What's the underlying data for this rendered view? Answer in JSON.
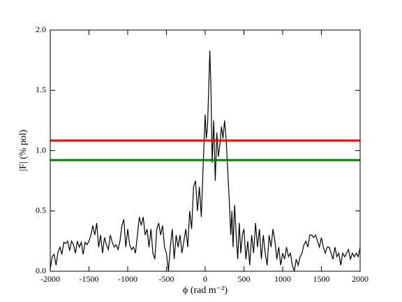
{
  "chart_data": {
    "type": "line",
    "xlabel": "ϕ (rad m⁻²)",
    "ylabel": "|F| (% pol)",
    "xlim": [
      -2000,
      2000
    ],
    "ylim": [
      0,
      2
    ],
    "xticks": [
      -2000,
      -1500,
      -1000,
      -500,
      0,
      500,
      1000,
      1500,
      2000
    ],
    "yticks": [
      {
        "value": 0,
        "label": "0.0"
      },
      0.5,
      {
        "value": 1,
        "label": "1.0"
      },
      1.5,
      {
        "value": 2,
        "label": "2.0"
      }
    ],
    "grid": false,
    "hlines": [
      {
        "value": 1.084,
        "color": "#ff0000"
      },
      {
        "value": 0.922,
        "color": "#008000"
      }
    ],
    "x": [
      -2000,
      -1975,
      -1950,
      -1925,
      -1900,
      -1875,
      -1850,
      -1825,
      -1800,
      -1775,
      -1750,
      -1725,
      -1700,
      -1675,
      -1650,
      -1625,
      -1600,
      -1575,
      -1550,
      -1525,
      -1500,
      -1475,
      -1450,
      -1425,
      -1400,
      -1375,
      -1350,
      -1325,
      -1300,
      -1275,
      -1250,
      -1225,
      -1200,
      -1175,
      -1150,
      -1125,
      -1100,
      -1075,
      -1050,
      -1025,
      -1000,
      -975,
      -950,
      -925,
      -900,
      -875,
      -850,
      -825,
      -800,
      -775,
      -750,
      -725,
      -700,
      -675,
      -650,
      -625,
      -600,
      -575,
      -550,
      -525,
      -500,
      -475,
      -450,
      -425,
      -400,
      -375,
      -350,
      -325,
      -300,
      -275,
      -250,
      -225,
      -200,
      -175,
      -150,
      -125,
      -100,
      -75,
      -50,
      -25,
      0,
      15,
      30,
      45,
      60,
      75,
      90,
      110,
      130,
      150,
      170,
      190,
      210,
      230,
      250,
      270,
      290,
      310,
      330,
      345,
      360,
      380,
      400,
      420,
      440,
      460,
      480,
      500,
      525,
      550,
      575,
      600,
      625,
      650,
      675,
      700,
      725,
      750,
      775,
      800,
      825,
      850,
      875,
      900,
      925,
      950,
      975,
      1000,
      1025,
      1050,
      1075,
      1100,
      1125,
      1150,
      1175,
      1200,
      1225,
      1250,
      1275,
      1300,
      1325,
      1350,
      1375,
      1400,
      1425,
      1450,
      1475,
      1500,
      1525,
      1550,
      1575,
      1600,
      1625,
      1650,
      1675,
      1700,
      1725,
      1750,
      1775,
      1800,
      1825,
      1850,
      1875,
      1900,
      1925,
      1950,
      1975,
      2000
    ],
    "series": [
      {
        "color": "#000000",
        "values": [
          0.02,
          0.12,
          0.14,
          0.05,
          0.16,
          0.2,
          0.14,
          0.24,
          0.23,
          0.25,
          0.17,
          0.25,
          0.22,
          0.15,
          0.25,
          0.2,
          0.24,
          0.14,
          0.24,
          0.22,
          0.25,
          0.3,
          0.38,
          0.3,
          0.4,
          0.2,
          0.3,
          0.15,
          0.28,
          0.22,
          0.18,
          0.3,
          0.24,
          0.2,
          0.22,
          0.18,
          0.25,
          0.38,
          0.43,
          0.2,
          0.35,
          0.22,
          0.18,
          0.2,
          0.15,
          0.3,
          0.45,
          0.38,
          0.45,
          0.3,
          0.35,
          0.2,
          0.35,
          0.15,
          0.1,
          0.35,
          0.4,
          0.3,
          0.38,
          0.2,
          0.15,
          0.0,
          0.2,
          0.35,
          0.1,
          0.3,
          0.2,
          0.3,
          0.15,
          0.25,
          0.35,
          0.2,
          0.5,
          0.35,
          0.7,
          0.75,
          0.5,
          0.7,
          0.45,
          0.9,
          1.3,
          1.1,
          1.2,
          1.5,
          1.83,
          1.5,
          0.9,
          1.25,
          0.75,
          1.15,
          0.95,
          1.05,
          1.2,
          1.1,
          1.25,
          1.1,
          0.85,
          0.6,
          0.3,
          0.5,
          0.2,
          0.55,
          0.3,
          0.1,
          0.4,
          0.15,
          0.3,
          0.35,
          0.1,
          0.25,
          0.05,
          0.3,
          0.15,
          0.4,
          0.2,
          0.35,
          0.1,
          0.3,
          0.15,
          0.05,
          0.3,
          0.2,
          0.35,
          0.25,
          0.1,
          0.2,
          0.05,
          0.15,
          0.1,
          0.2,
          0.12,
          0.15,
          0.05,
          0.0,
          0.1,
          0.05,
          0.12,
          0.15,
          0.22,
          0.25,
          0.2,
          0.3,
          0.3,
          0.28,
          0.3,
          0.25,
          0.2,
          0.28,
          0.2,
          0.15,
          0.2,
          0.2,
          0.15,
          0.1,
          0.2,
          0.12,
          0.15,
          0.05,
          0.15,
          0.12,
          0.15,
          0.18,
          0.1,
          0.15,
          0.12,
          0.15,
          0.12,
          0.2
        ]
      }
    ]
  }
}
